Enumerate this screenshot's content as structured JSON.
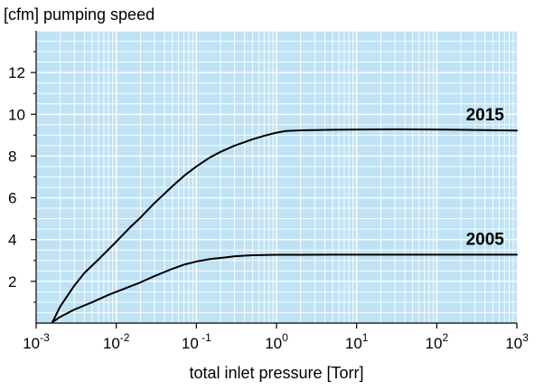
{
  "chart_data": {
    "type": "line",
    "title": "[cfm] pumping speed",
    "xlabel": "total inlet pressure [Torr]",
    "ylabel": "",
    "x_scale": "log",
    "xlim": [
      0.001,
      1000
    ],
    "ylim": [
      0,
      14
    ],
    "grid": true,
    "background_color": "#bfe3f5",
    "grid_color": "#ffffff",
    "line_color": "#000000",
    "x_ticks": [
      {
        "base": "10",
        "exp": "-3"
      },
      {
        "base": "10",
        "exp": "-2"
      },
      {
        "base": "10",
        "exp": " -1"
      },
      {
        "base": "10",
        "exp": "0"
      },
      {
        "base": "10",
        "exp": "1"
      },
      {
        "base": "10",
        "exp": "2"
      },
      {
        "base": "10",
        "exp": "3"
      }
    ],
    "y_ticks": [
      "2",
      "4",
      "6",
      "8",
      "10",
      "12"
    ],
    "series": [
      {
        "name": "2015",
        "label_x": 400,
        "label_y": 9.7,
        "x": [
          0.0016,
          0.002,
          0.003,
          0.004,
          0.006,
          0.01,
          0.015,
          0.02,
          0.03,
          0.05,
          0.07,
          0.1,
          0.15,
          0.2,
          0.3,
          0.5,
          0.7,
          1.0,
          1.3,
          2,
          5,
          10,
          30,
          100,
          300,
          1000
        ],
        "y": [
          0.05,
          0.8,
          1.8,
          2.4,
          3.05,
          3.9,
          4.6,
          5.05,
          5.75,
          6.55,
          7.05,
          7.5,
          7.95,
          8.2,
          8.5,
          8.8,
          8.97,
          9.12,
          9.2,
          9.23,
          9.26,
          9.27,
          9.28,
          9.27,
          9.25,
          9.22
        ]
      },
      {
        "name": "2005",
        "label_x": 400,
        "label_y": 3.75,
        "x": [
          0.0016,
          0.002,
          0.003,
          0.005,
          0.008,
          0.01,
          0.02,
          0.03,
          0.05,
          0.07,
          0.1,
          0.15,
          0.2,
          0.3,
          0.5,
          1,
          2,
          5,
          10,
          100,
          1000
        ],
        "y": [
          0.05,
          0.3,
          0.65,
          1.0,
          1.35,
          1.5,
          1.95,
          2.25,
          2.6,
          2.8,
          2.95,
          3.07,
          3.12,
          3.2,
          3.25,
          3.27,
          3.27,
          3.28,
          3.28,
          3.28,
          3.28
        ]
      }
    ]
  }
}
